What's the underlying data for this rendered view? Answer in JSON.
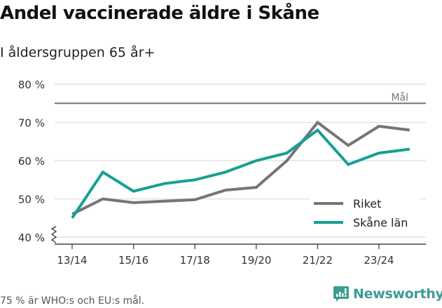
{
  "header": {
    "title": "Andel vaccinerade äldre i Skåne",
    "subtitle": "I åldersgruppen 65 år+"
  },
  "footer": {
    "note": "75 % är WHO:s och EU:s mål.",
    "brand": "Newsworthy"
  },
  "colors": {
    "riket": "#76737a",
    "skane": "#16a091",
    "grid": "#e2e2e2",
    "goal": "#77747a",
    "brand": "#3d9c93"
  },
  "chart_data": {
    "type": "line",
    "title": "Andel vaccinerade äldre i Skåne",
    "subtitle": "I åldersgruppen 65 år+",
    "xlabel": "",
    "ylabel": "",
    "x": [
      "13/14",
      "14/15",
      "15/16",
      "16/17",
      "17/18",
      "18/19",
      "19/20",
      "20/21",
      "21/22",
      "22/23",
      "23/24",
      "24/25"
    ],
    "x_tick_labels": [
      "13/14",
      "15/16",
      "17/18",
      "19/20",
      "21/22",
      "23/24"
    ],
    "y_tick_labels": [
      "40 %",
      "50 %",
      "60 %",
      "70 %",
      "80 %"
    ],
    "ylim": [
      40,
      80
    ],
    "grid": true,
    "axis_break": true,
    "series": [
      {
        "name": "Riket",
        "values": [
          46,
          50,
          49,
          49.4,
          49.8,
          52.3,
          53,
          60,
          70,
          64,
          69,
          68
        ]
      },
      {
        "name": "Skåne län",
        "values": [
          45,
          57,
          52,
          54,
          55,
          57,
          60,
          62,
          68,
          59,
          62,
          63
        ]
      }
    ],
    "annotations": [
      {
        "type": "hline",
        "y": 75,
        "label": "Mål"
      }
    ],
    "legend": {
      "position": "lower right",
      "entries": [
        "Riket",
        "Skåne län"
      ]
    },
    "footnote": "75 % är WHO:s och EU:s mål."
  }
}
